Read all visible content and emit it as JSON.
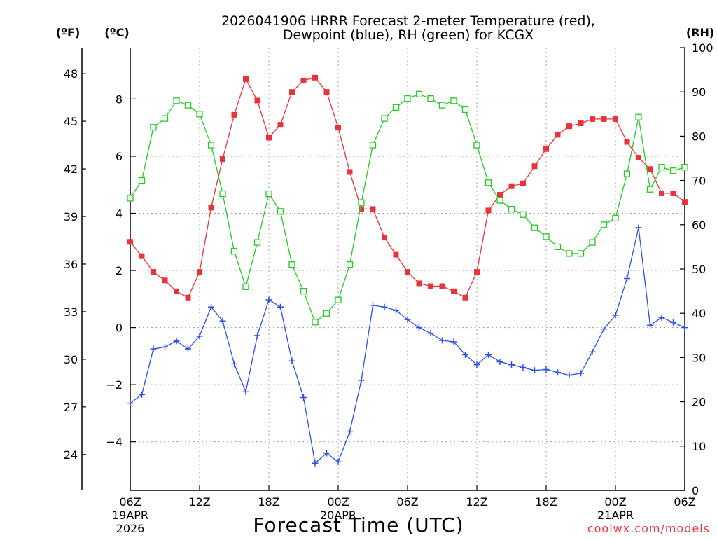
{
  "chart_data": {
    "type": "line",
    "title_lines": [
      "2026041906 HRRR Forecast 2-meter Temperature (red),",
      "Dewpoint (blue), RH (green) for KCGX"
    ],
    "xlabel": "Forecast Time (UTC)",
    "credit": "coolwx.com/models",
    "units": {
      "f": "(ºF)",
      "c": "(ºC)",
      "rh": "(RH)"
    },
    "x_hours": [
      0,
      1,
      2,
      3,
      4,
      5,
      6,
      7,
      8,
      9,
      10,
      11,
      12,
      13,
      14,
      15,
      16,
      17,
      18,
      19,
      20,
      21,
      22,
      23,
      24,
      25,
      26,
      27,
      28,
      29,
      30,
      31,
      32,
      33,
      34,
      35,
      36,
      37,
      38,
      39,
      40,
      41,
      42,
      43,
      44,
      45,
      46,
      47,
      48
    ],
    "x_tick_hours": [
      0,
      6,
      12,
      18,
      24,
      30,
      36,
      42,
      48
    ],
    "x_ticks": [
      {
        "hour": 0,
        "label": "06Z",
        "date1": "19APR",
        "date2": "2026"
      },
      {
        "hour": 6,
        "label": "12Z"
      },
      {
        "hour": 12,
        "label": "18Z"
      },
      {
        "hour": 18,
        "label": "00Z",
        "date1": "20APR"
      },
      {
        "hour": 24,
        "label": "06Z"
      },
      {
        "hour": 30,
        "label": "12Z"
      },
      {
        "hour": 36,
        "label": "18Z"
      },
      {
        "hour": 42,
        "label": "00Z",
        "date1": "21APR"
      },
      {
        "hour": 48,
        "label": "06Z"
      }
    ],
    "xlim": [
      0,
      48
    ],
    "c_axis": {
      "ticks": [
        -4,
        -2,
        0,
        2,
        4,
        6,
        8
      ],
      "labels": [
        "−4",
        "−2",
        "0",
        "2",
        "4",
        "6",
        "8"
      ],
      "ylim": [
        -5.7,
        9.8
      ]
    },
    "f_axis": {
      "ticks": [
        24,
        27,
        30,
        33,
        36,
        39,
        42,
        45,
        48
      ]
    },
    "rh_axis": {
      "ticks": [
        0,
        10,
        20,
        30,
        40,
        50,
        60,
        70,
        80,
        90,
        100
      ],
      "ylim": [
        0,
        100
      ]
    },
    "grid": true,
    "series": [
      {
        "name": "Temperature",
        "axis": "c",
        "color": "#e8333b",
        "marker": "filled-square",
        "values": [
          3.0,
          2.5,
          1.95,
          1.65,
          1.27,
          1.05,
          1.95,
          4.2,
          5.9,
          7.45,
          8.7,
          7.95,
          6.65,
          7.1,
          8.25,
          8.65,
          8.75,
          8.25,
          7.0,
          5.45,
          4.15,
          4.15,
          3.15,
          2.55,
          1.95,
          1.55,
          1.45,
          1.45,
          1.27,
          1.05,
          1.95,
          4.1,
          4.65,
          4.95,
          5.05,
          5.65,
          6.25,
          6.75,
          7.05,
          7.15,
          7.3,
          7.3,
          7.3,
          6.5,
          5.95,
          5.55,
          4.7,
          4.7,
          4.4
        ]
      },
      {
        "name": "Dewpoint",
        "axis": "c",
        "color": "#2c4fe8",
        "marker": "plus",
        "values": [
          -2.65,
          -2.35,
          -0.75,
          -0.68,
          -0.47,
          -0.75,
          -0.3,
          0.72,
          0.23,
          -1.27,
          -2.25,
          -0.28,
          0.97,
          0.72,
          -1.17,
          -2.45,
          -4.75,
          -4.4,
          -4.7,
          -3.65,
          -1.85,
          0.78,
          0.72,
          0.6,
          0.28,
          0.0,
          -0.2,
          -0.45,
          -0.5,
          -0.95,
          -1.3,
          -0.95,
          -1.2,
          -1.3,
          -1.4,
          -1.5,
          -1.47,
          -1.57,
          -1.67,
          -1.6,
          -0.85,
          -0.05,
          0.43,
          1.72,
          3.5,
          0.08,
          0.35,
          0.18,
          0.0
        ]
      },
      {
        "name": "RH",
        "axis": "rh",
        "color": "#22cc22",
        "marker": "open-square",
        "values": [
          66,
          70,
          82,
          84,
          88,
          87,
          85,
          78,
          67,
          54,
          46,
          56,
          67,
          63,
          51,
          45,
          38,
          40,
          43,
          51,
          65,
          78,
          84,
          86.5,
          88.5,
          89.5,
          88.5,
          87,
          88,
          86,
          78,
          69.5,
          65.5,
          63.5,
          62.3,
          59.3,
          57.3,
          55,
          53.5,
          53.5,
          56,
          60,
          61.5,
          71.5,
          84.3,
          68,
          73,
          72.2,
          73
        ]
      }
    ]
  }
}
